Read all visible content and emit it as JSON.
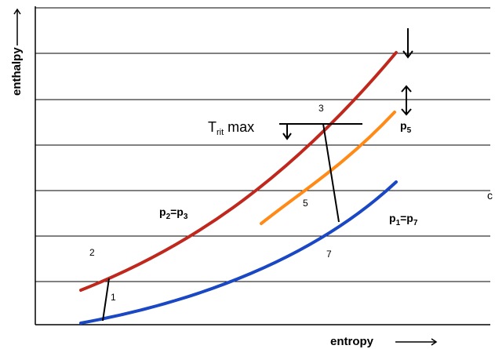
{
  "axes": {
    "ylabel": "enthalpy",
    "xlabel": "entropy"
  },
  "labels": {
    "t_rit_base": "T",
    "t_rit_sub": "rit",
    "t_rit_rest": " max",
    "p2_base": "p",
    "p2_sub": "2",
    "p2_eq": "=p",
    "p3_sub": "3",
    "p5_base": "p",
    "p5_sub": "5",
    "p1_base": "p",
    "p1_sub": "1",
    "p1_eq": "=p",
    "p7_sub": "7",
    "edge_c": "c"
  },
  "points": {
    "n1": "1",
    "n2": "2",
    "n3": "3",
    "n5": "5",
    "n7": "7"
  },
  "colors": {
    "p2_p3_curve": "#c0281e",
    "p5_curve": "#ff8a16",
    "p1_p7_curve": "#1a47c4",
    "grid": "#000000",
    "process_line": "#000000"
  }
}
